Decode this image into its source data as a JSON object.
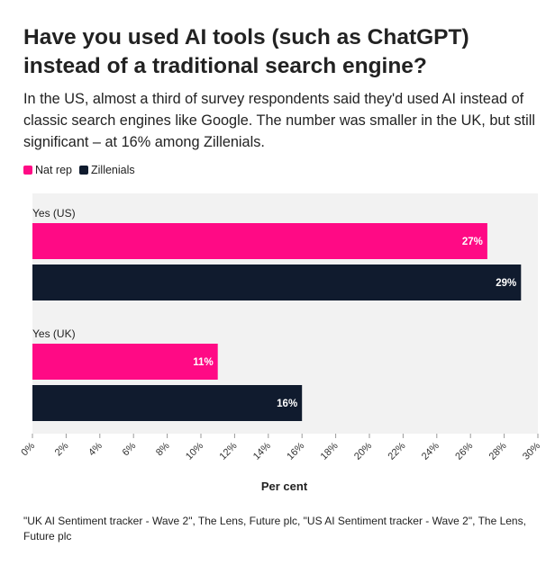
{
  "title": "Have you used AI tools (such as ChatGPT) instead of a traditional search engine?",
  "subtitle": "In the US, almost a third of survey respondents said they'd used AI instead of classic search engines like Google. The number was smaller in the UK, but still significant – at 16% among Zillenials.",
  "source": "\"UK AI Sentiment tracker - Wave 2\", The Lens, Future plc, \"US AI Sentiment tracker - Wave 2\", The Lens, Future plc",
  "colors": {
    "nat_rep": "#ff0a85",
    "zillenials": "#101b2e",
    "plot_bg": "#f2f2f2"
  },
  "chart_data": {
    "type": "bar",
    "orientation": "horizontal",
    "categories": [
      "Yes (US)",
      "Yes (UK)"
    ],
    "series": [
      {
        "name": "Nat rep",
        "color": "#ff0a85",
        "values": [
          27,
          11
        ],
        "labels": [
          "27%",
          "11%"
        ]
      },
      {
        "name": "Zillenials",
        "color": "#101b2e",
        "values": [
          29,
          16
        ],
        "labels": [
          "29%",
          "16%"
        ]
      }
    ],
    "xlabel": "Per cent",
    "ylabel": "",
    "xlim": [
      0,
      30
    ],
    "xticks": [
      "0%",
      "2%",
      "4%",
      "6%",
      "8%",
      "10%",
      "12%",
      "14%",
      "16%",
      "18%",
      "20%",
      "22%",
      "24%",
      "26%",
      "28%",
      "30%"
    ],
    "legend": "top-left",
    "grid": false
  }
}
